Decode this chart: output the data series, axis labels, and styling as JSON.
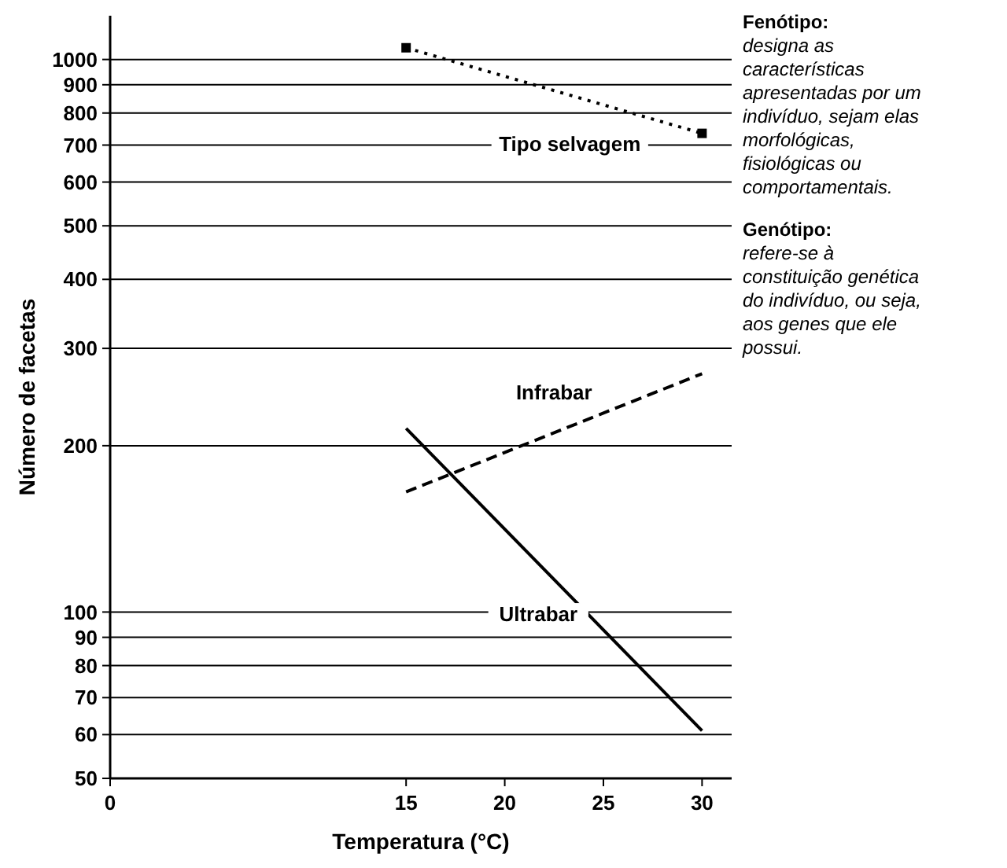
{
  "chart_data": {
    "type": "line",
    "xlabel": "Temperatura (°C)",
    "ylabel": "Número de facetas",
    "log": "y",
    "grid": "y",
    "xlim": [
      0,
      31.5
    ],
    "xticks": [
      0,
      15,
      20,
      25,
      30
    ],
    "ylim": [
      50,
      1200
    ],
    "yticks": [
      50,
      60,
      70,
      80,
      90,
      100,
      200,
      300,
      400,
      500,
      600,
      700,
      800,
      900,
      1000
    ],
    "x": [
      15,
      30
    ],
    "series": [
      {
        "name": "Tipo selvagem",
        "values": [
          1050,
          735
        ],
        "color": "#000000",
        "line_style": "dotted",
        "marker": "square"
      },
      {
        "name": "Infrabar",
        "values": [
          165,
          270
        ],
        "color": "#000000",
        "line_style": "dashed",
        "marker": "none"
      },
      {
        "name": "Ultrabar",
        "values": [
          215,
          61
        ],
        "color": "#000000",
        "line_style": "solid",
        "marker": "none"
      }
    ],
    "annotations": [
      "Fenótipo: designa as características apresentadas por um indivíduo, sejam elas morfológicas, fisiológicas ou comportamentais.",
      "Genótipo: refere-se à constituição genética do indivíduo, ou seja, aos genes que ele possui."
    ]
  }
}
